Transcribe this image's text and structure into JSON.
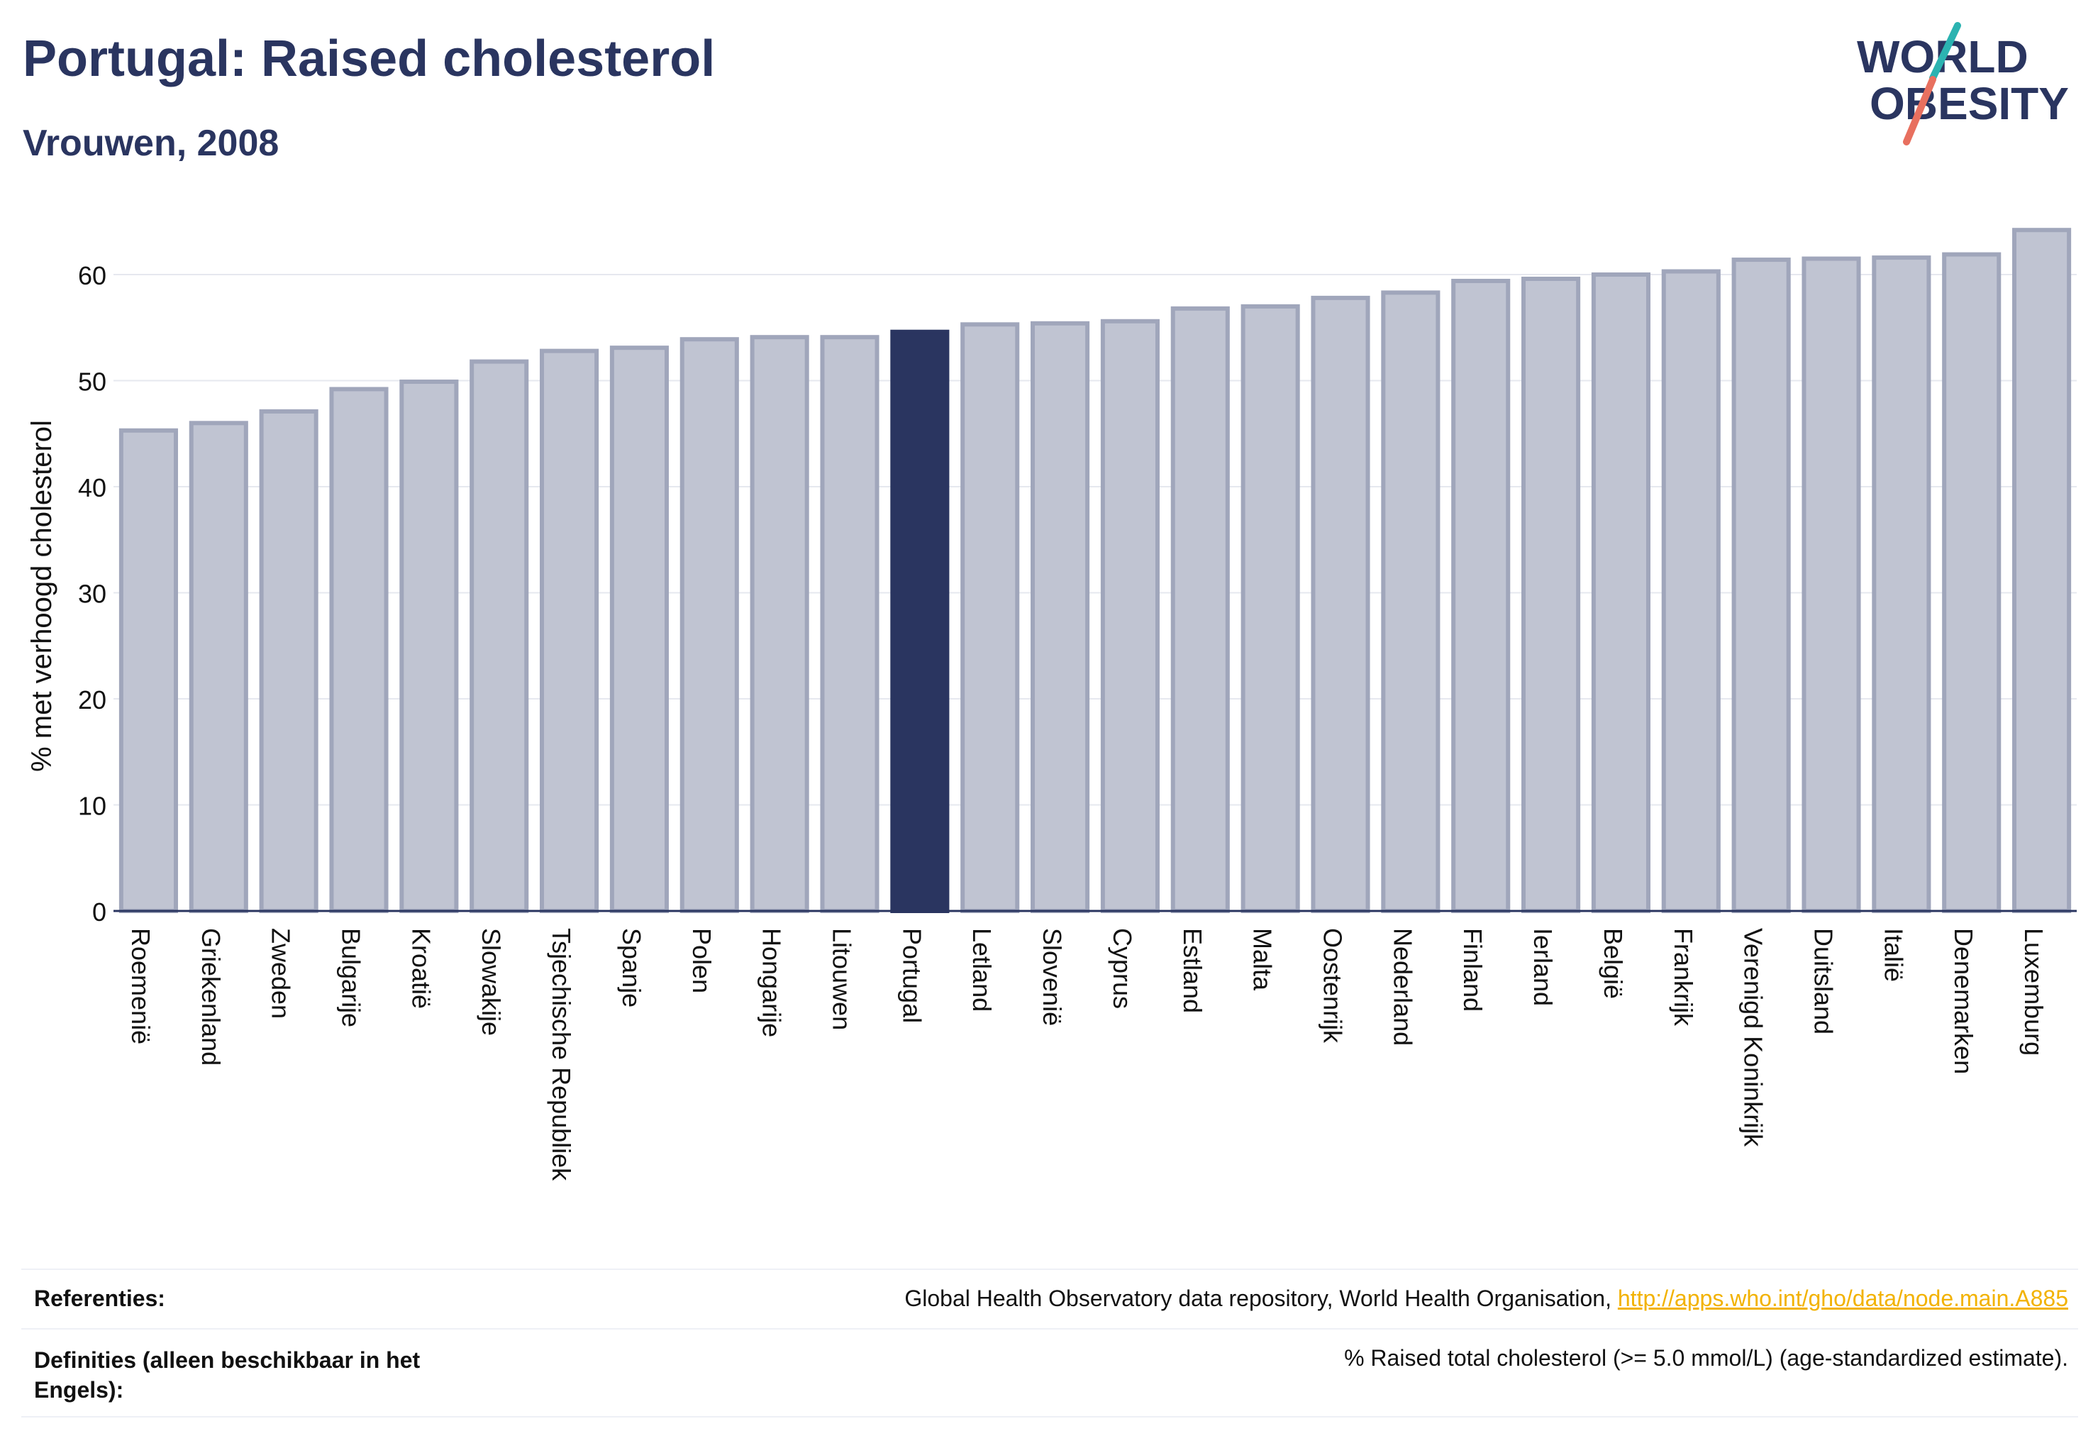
{
  "header": {
    "title": "Portugal: Raised cholesterol",
    "subtitle": "Vrouwen, 2008"
  },
  "logo": {
    "line1": "WORLD",
    "line2": "OBESITY",
    "accent_teal": "#2bb3b1",
    "accent_coral": "#e8705f",
    "text_color": "#2a3560"
  },
  "colors": {
    "bar": "#c0c4d2",
    "bar_stroke": "#a0a6bb",
    "highlight": "#2a3560",
    "grid": "#e6e8ef"
  },
  "chart_data": {
    "type": "bar",
    "ylabel": "% met verhoogd cholesterol",
    "xlabel": "",
    "ylim": [
      0,
      65
    ],
    "yticks": [
      0,
      10,
      20,
      30,
      40,
      50,
      60
    ],
    "grid": true,
    "highlight": "Portugal",
    "categories": [
      "Roemenië",
      "Griekenland",
      "Zweden",
      "Bulgarije",
      "Kroatië",
      "Slowakije",
      "Tsjechische Republiek",
      "Spanje",
      "Polen",
      "Hongarije",
      "Litouwen",
      "Portugal",
      "Letland",
      "Slovenië",
      "Cyprus",
      "Estland",
      "Malta",
      "Oostenrijk",
      "Nederland",
      "Finland",
      "Ierland",
      "België",
      "Frankrijk",
      "Verenigd Koninkrijk",
      "Duitsland",
      "Italië",
      "Denemarken",
      "Luxemburg"
    ],
    "values": [
      45.3,
      46.0,
      47.1,
      49.2,
      49.9,
      51.8,
      52.8,
      53.1,
      53.9,
      54.1,
      54.1,
      54.6,
      55.3,
      55.4,
      55.6,
      56.8,
      57.0,
      57.8,
      58.3,
      59.4,
      59.6,
      60.0,
      60.3,
      61.4,
      61.5,
      61.6,
      61.9,
      64.2
    ]
  },
  "footer": {
    "references_label": "Referenties:",
    "references_text": "Global Health Observatory data repository, World Health Organisation, ",
    "references_link": "http://apps.who.int/gho/data/node.main.A885",
    "definitions_label": "Definities (alleen beschikbaar in het Engels):",
    "definitions_text": "% Raised total cholesterol (>= 5.0 mmol/L) (age-standardized estimate)."
  }
}
